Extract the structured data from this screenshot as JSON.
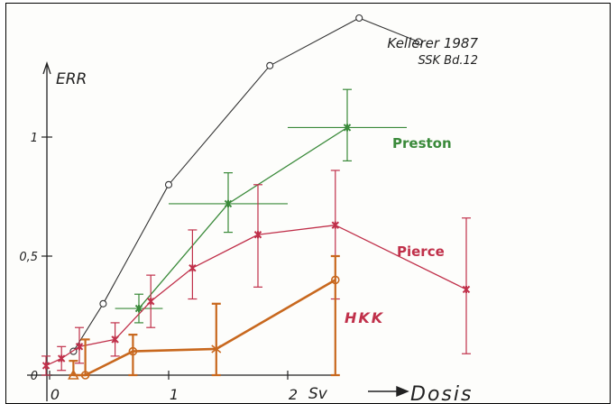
{
  "chart_data": {
    "type": "line",
    "title": "",
    "xlabel": "Dosis",
    "ylabel": "ERR",
    "x_unit": "Sv",
    "xlim": [
      -0.05,
      2.55
    ],
    "ylim": [
      0,
      1.35
    ],
    "x_ticks": [
      {
        "value": 0,
        "label": "0"
      },
      {
        "value": 1,
        "label": "1"
      },
      {
        "value": 2,
        "label": "2"
      }
    ],
    "y_ticks": [
      {
        "value": 0,
        "label": "0"
      },
      {
        "value": 0.5,
        "label": "0,5"
      },
      {
        "value": 1,
        "label": "1"
      }
    ],
    "annotations": [
      {
        "text": "Kellerer 1987"
      },
      {
        "text": "SSK Bd.12"
      }
    ],
    "series": [
      {
        "name": "",
        "label_ref": "annotations",
        "color": "#333333",
        "marker": "circle",
        "points": [
          {
            "x": 0.2,
            "y": 0.1
          },
          {
            "x": 0.45,
            "y": 0.3
          },
          {
            "x": 1.0,
            "y": 0.8
          },
          {
            "x": 1.85,
            "y": 1.3
          },
          {
            "x": 2.6,
            "y": 1.5
          },
          {
            "x": 3.1,
            "y": 1.4
          }
        ]
      },
      {
        "name": "Preston",
        "color": "#3a8a3a",
        "marker": "cross",
        "points": [
          {
            "x": 0.75,
            "y": 0.28,
            "xerr": [
              0.55,
              0.95
            ],
            "yerr": [
              0.22,
              0.34
            ]
          },
          {
            "x": 1.5,
            "y": 0.72,
            "xerr": [
              1.0,
              2.0
            ],
            "yerr": [
              0.6,
              0.85
            ]
          },
          {
            "x": 2.5,
            "y": 1.04,
            "xerr": [
              2.0,
              3.0
            ],
            "yerr": [
              0.9,
              1.2
            ]
          }
        ]
      },
      {
        "name": "Pierce",
        "color": "#c0304a",
        "marker": "star",
        "points": [
          {
            "x": -0.03,
            "y": 0.04,
            "yerr": [
              0.0,
              0.08
            ]
          },
          {
            "x": 0.1,
            "y": 0.07,
            "yerr": [
              0.02,
              0.12
            ]
          },
          {
            "x": 0.25,
            "y": 0.12,
            "yerr": [
              0.05,
              0.2
            ]
          },
          {
            "x": 0.55,
            "y": 0.15,
            "yerr": [
              0.08,
              0.22
            ]
          },
          {
            "x": 0.85,
            "y": 0.31,
            "yerr": [
              0.2,
              0.42
            ]
          },
          {
            "x": 1.2,
            "y": 0.45,
            "yerr": [
              0.32,
              0.61
            ]
          },
          {
            "x": 1.75,
            "y": 0.59,
            "yerr": [
              0.37,
              0.8
            ]
          },
          {
            "x": 2.4,
            "y": 0.63,
            "yerr": [
              0.32,
              0.86
            ]
          },
          {
            "x": 3.5,
            "y": 0.36,
            "yerr": [
              0.09,
              0.66
            ]
          }
        ]
      },
      {
        "name": "HKK",
        "color": "#c8681e",
        "marker": "mixed",
        "points": [
          {
            "x": 0.2,
            "y": 0.0,
            "yerr": [
              0.0,
              0.06
            ]
          },
          {
            "x": 0.3,
            "y": 0.0,
            "yerr": [
              0.0,
              0.15
            ]
          },
          {
            "x": 0.7,
            "y": 0.1,
            "yerr": [
              0.0,
              0.17
            ]
          },
          {
            "x": 1.4,
            "y": 0.11,
            "yerr": [
              0.0,
              0.3
            ]
          },
          {
            "x": 2.4,
            "y": 0.4,
            "yerr": [
              0.0,
              0.5
            ]
          }
        ]
      }
    ]
  }
}
